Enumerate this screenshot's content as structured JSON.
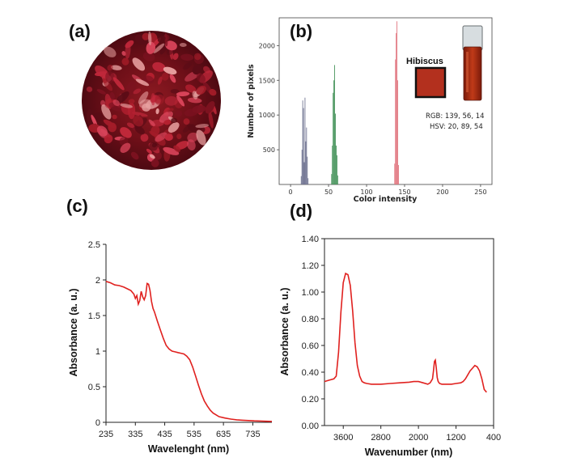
{
  "panels": {
    "a": {
      "label": "(a)"
    },
    "b": {
      "label": "(b)"
    },
    "c": {
      "label": "(c)"
    },
    "d": {
      "label": "(d)"
    }
  },
  "sample": {
    "name": "Hibiscus",
    "swatch_color": "#b3301e",
    "rgb_text": "RGB: 139, 56, 14",
    "hsv_text": "HSV: 20, 89, 54"
  },
  "chart_data": [
    {
      "id": "b",
      "type": "bar",
      "title": "",
      "xlabel": "Color intensity",
      "ylabel": "Number of pixels",
      "xlim": [
        -15,
        265
      ],
      "ylim": [
        0,
        2400
      ],
      "xticks": [
        0,
        50,
        100,
        150,
        200,
        250
      ],
      "yticks": [
        500,
        1000,
        1500,
        2000
      ],
      "series": [
        {
          "color": "#6b6f8e",
          "x": [
            14,
            15,
            16,
            17,
            18,
            19,
            20,
            21,
            22,
            23
          ],
          "values": [
            120,
            500,
            1210,
            1100,
            320,
            1250,
            620,
            820,
            400,
            90
          ]
        },
        {
          "color": "#3f8f55",
          "x": [
            54,
            55,
            56,
            57,
            58,
            59,
            60,
            61,
            62
          ],
          "values": [
            150,
            560,
            1320,
            1500,
            1720,
            1020,
            560,
            420,
            130
          ]
        },
        {
          "color": "#e0707a",
          "x": [
            137,
            138,
            139,
            140,
            141,
            142
          ],
          "values": [
            300,
            1800,
            2180,
            2350,
            1500,
            280
          ]
        }
      ]
    },
    {
      "id": "c",
      "type": "line",
      "title": "",
      "xlabel": "Wavelenght (nm)",
      "ylabel": "Absorbance (a. u.)",
      "xlim": [
        235,
        800
      ],
      "ylim": [
        0,
        2.5
      ],
      "xticks": [
        235,
        335,
        435,
        535,
        635,
        735
      ],
      "yticks": [
        0,
        0.5,
        1,
        1.5,
        2,
        2.5
      ],
      "ytick_labels": [
        "0",
        "0.5",
        "1",
        "1.5",
        "2",
        "2.5"
      ],
      "series": [
        {
          "color": "#e0211f",
          "x": [
            235,
            250,
            265,
            280,
            295,
            310,
            320,
            330,
            335,
            340,
            345,
            350,
            355,
            360,
            365,
            370,
            375,
            380,
            385,
            390,
            395,
            400,
            410,
            420,
            430,
            440,
            450,
            460,
            470,
            480,
            490,
            500,
            510,
            520,
            530,
            540,
            550,
            560,
            570,
            580,
            590,
            600,
            620,
            640,
            660,
            680,
            700,
            720,
            740,
            760,
            780,
            800
          ],
          "values": [
            1.98,
            1.96,
            1.93,
            1.92,
            1.9,
            1.87,
            1.85,
            1.8,
            1.74,
            1.78,
            1.66,
            1.71,
            1.84,
            1.76,
            1.72,
            1.78,
            1.95,
            1.94,
            1.85,
            1.7,
            1.6,
            1.55,
            1.42,
            1.3,
            1.18,
            1.08,
            1.03,
            1.0,
            0.99,
            0.98,
            0.97,
            0.96,
            0.93,
            0.88,
            0.78,
            0.65,
            0.52,
            0.4,
            0.3,
            0.23,
            0.17,
            0.13,
            0.08,
            0.06,
            0.045,
            0.035,
            0.03,
            0.025,
            0.02,
            0.018,
            0.015,
            0.012
          ]
        }
      ]
    },
    {
      "id": "d",
      "type": "line",
      "title": "",
      "xlabel": "Wavenumber (nm)",
      "ylabel": "Absorbance (a. u.)",
      "xlim": [
        4000,
        400
      ],
      "ylim": [
        0,
        1.4
      ],
      "xticks": [
        3600,
        2800,
        2000,
        1200,
        400
      ],
      "yticks": [
        0,
        0.2,
        0.4,
        0.6,
        0.8,
        1.0,
        1.2,
        1.4
      ],
      "ytick_labels": [
        "0.00",
        "0.20",
        "0.40",
        "0.60",
        "0.80",
        "1.00",
        "1.20",
        "1.40"
      ],
      "series": [
        {
          "color": "#e0211f",
          "x": [
            4000,
            3900,
            3800,
            3750,
            3700,
            3650,
            3600,
            3550,
            3500,
            3450,
            3400,
            3350,
            3300,
            3250,
            3200,
            3150,
            3100,
            3000,
            2900,
            2800,
            2600,
            2400,
            2200,
            2100,
            2000,
            1900,
            1800,
            1750,
            1700,
            1680,
            1660,
            1640,
            1620,
            1600,
            1580,
            1550,
            1500,
            1450,
            1400,
            1300,
            1200,
            1100,
            1050,
            1000,
            950,
            900,
            850,
            800,
            750,
            700,
            650,
            600,
            550
          ],
          "values": [
            0.33,
            0.34,
            0.35,
            0.37,
            0.55,
            0.85,
            1.07,
            1.14,
            1.13,
            1.05,
            0.86,
            0.62,
            0.45,
            0.37,
            0.33,
            0.32,
            0.315,
            0.31,
            0.31,
            0.31,
            0.315,
            0.32,
            0.325,
            0.33,
            0.33,
            0.32,
            0.31,
            0.32,
            0.35,
            0.41,
            0.48,
            0.49,
            0.43,
            0.36,
            0.33,
            0.315,
            0.31,
            0.31,
            0.31,
            0.31,
            0.315,
            0.32,
            0.33,
            0.35,
            0.38,
            0.41,
            0.43,
            0.45,
            0.44,
            0.41,
            0.35,
            0.27,
            0.25
          ]
        }
      ]
    }
  ]
}
